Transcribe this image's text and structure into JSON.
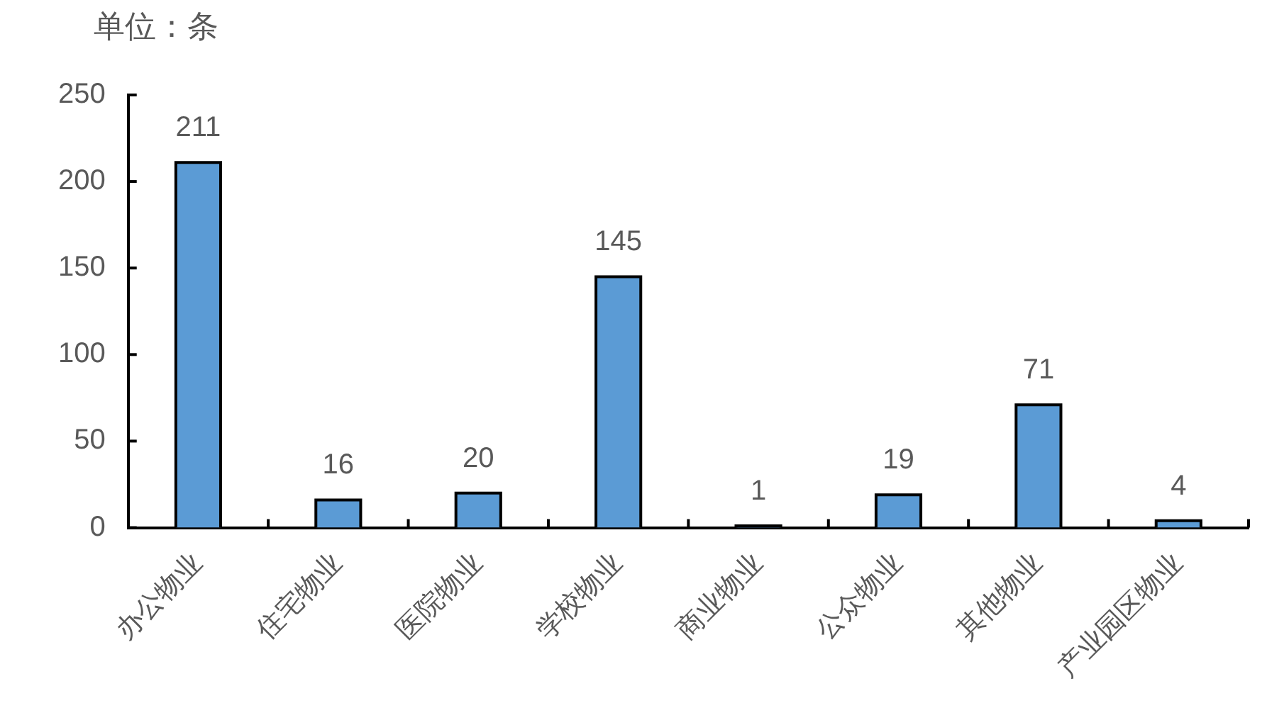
{
  "chart_data": {
    "type": "bar",
    "ylabel": "单位：条",
    "categories": [
      "办公物业",
      "住宅物业",
      "医院物业",
      "学校物业",
      "商业物业",
      "公众物业",
      "其他物业",
      "产业园区物业"
    ],
    "values": [
      211,
      16,
      20,
      145,
      1,
      19,
      71,
      4
    ],
    "color": "#5b9bd5",
    "ylim": [
      0,
      250
    ],
    "yticks": [
      0,
      50,
      100,
      150,
      200,
      250
    ],
    "grid": false,
    "data_labels": true
  }
}
